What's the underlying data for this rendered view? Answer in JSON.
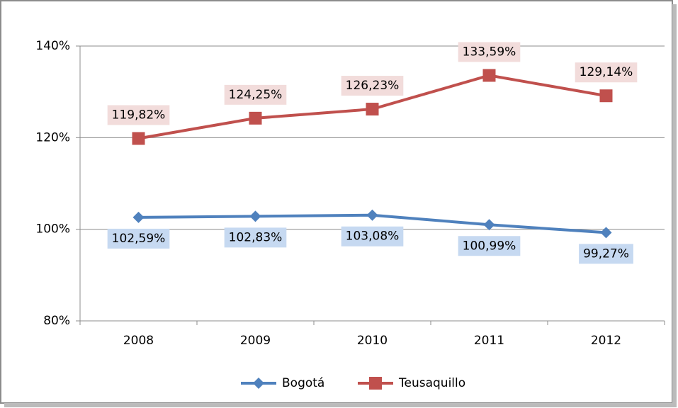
{
  "chart_data": {
    "type": "line",
    "categories": [
      "2008",
      "2009",
      "2010",
      "2011",
      "2012"
    ],
    "series": [
      {
        "name": "Bogotá",
        "color": "#4f81bd",
        "marker": "diamond",
        "label_position": "below",
        "values": [
          102.59,
          102.83,
          103.08,
          100.99,
          99.27
        ],
        "value_labels": [
          "102,59%",
          "102,83%",
          "103,08%",
          "100,99%",
          "99,27%"
        ]
      },
      {
        "name": "Teusaquillo",
        "color": "#c0504d",
        "marker": "square",
        "label_position": "above",
        "values": [
          119.82,
          124.25,
          126.23,
          133.59,
          129.14
        ],
        "value_labels": [
          "119,82%",
          "124,25%",
          "126,23%",
          "133,59%",
          "129,14%"
        ]
      }
    ],
    "ylim": [
      80,
      140
    ],
    "yticks": [
      {
        "value": 80,
        "label": "80%"
      },
      {
        "value": 100,
        "label": "100%"
      },
      {
        "value": 120,
        "label": "120%"
      },
      {
        "value": 140,
        "label": "140%"
      }
    ],
    "grid": true,
    "legend": "bottom"
  }
}
